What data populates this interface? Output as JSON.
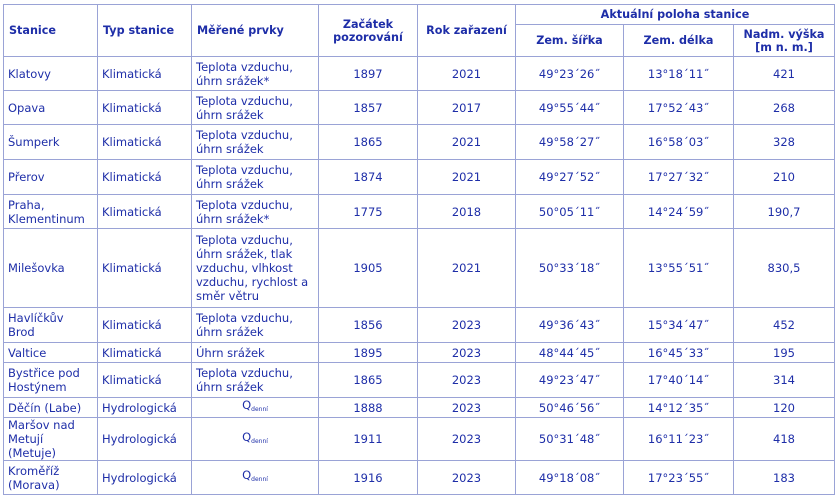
{
  "headers": {
    "station": "Stanice",
    "type": "Typ stanice",
    "measured": "Měřené prvky",
    "start": "Začátek pozorování",
    "year": "Rok zařazení",
    "position_group": "Aktuální poloha stanice",
    "lat": "Zem. šířka",
    "lon": "Zem. délka",
    "alt": "Nadm. výška [m n. m.]"
  },
  "rows": [
    {
      "station": "Klatovy",
      "type": "Klimatická",
      "measured": "Teplota vzduchu, úhrn srážek*",
      "start": "1897",
      "year": "2021",
      "lat": "49°23´26˝",
      "lon": "13°18´11˝",
      "alt": "421"
    },
    {
      "station": "Opava",
      "type": "Klimatická",
      "measured": "Teplota vzduchu, úhrn srážek",
      "start": "1857",
      "year": "2017",
      "lat": "49°55´44˝",
      "lon": "17°52´43˝",
      "alt": "268"
    },
    {
      "station": "Šumperk",
      "type": "Klimatická",
      "measured": "Teplota vzduchu, úhrn srážek",
      "start": "1865",
      "year": "2021",
      "lat": "49°58´27˝",
      "lon": "16°58´03˝",
      "alt": "328"
    },
    {
      "station": "Přerov",
      "type": "Klimatická",
      "measured": "Teplota vzduchu, úhrn srážek",
      "start": "1874",
      "year": "2021",
      "lat": "49°27´52˝",
      "lon": "17°27´32˝",
      "alt": "210"
    },
    {
      "station": "Praha, Klementinum",
      "type": "Klimatická",
      "measured": "Teplota vzduchu, úhrn srážek*",
      "start": "1775",
      "year": "2018",
      "lat": "50°05´11˝",
      "lon": "14°24´59˝",
      "alt": "190,7"
    },
    {
      "station": "Milešovka",
      "type": "Klimatická",
      "measured": "Teplota vzduchu, úhrn srážek, tlak vzduchu, vlhkost vzduchu, rychlost a směr větru",
      "start": "1905",
      "year": "2021",
      "lat": "50°33´18˝",
      "lon": "13°55´51˝",
      "alt": "830,5"
    },
    {
      "station": "Havlíčkův Brod",
      "type": "Klimatická",
      "measured": "Teplota vzduchu, úhrn srážek",
      "start": "1856",
      "year": "2023",
      "lat": "49°36´43˝",
      "lon": "15°34´47˝",
      "alt": "452"
    },
    {
      "station": "Valtice",
      "type": "Klimatická",
      "measured": "Úhrn srážek",
      "start": "1895",
      "year": "2023",
      "lat": "48°44´45˝",
      "lon": "16°45´33˝",
      "alt": "195"
    },
    {
      "station": "Bystřice pod Hostýnem",
      "type": "Klimatická",
      "measured": "Teplota vzduchu, úhrn srážek",
      "start": "1865",
      "year": "2023",
      "lat": "49°23´47˝",
      "lon": "17°40´14˝",
      "alt": "314"
    },
    {
      "station": "Děčín (Labe)",
      "type": "Hydrologická",
      "measured": "Q",
      "measured_sub": "denní",
      "start": "1888",
      "year": "2023",
      "lat": "50°46´56˝",
      "lon": "14°12´35˝",
      "alt": "120"
    },
    {
      "station": "Maršov nad Metují (Metuje)",
      "type": "Hydrologická",
      "measured": "Q",
      "measured_sub": "denní",
      "start": "1911",
      "year": "2023",
      "lat": "50°31´48˝",
      "lon": "16°11´23˝",
      "alt": "418"
    },
    {
      "station": "Kroměříž (Morava)",
      "type": "Hydrologická",
      "measured": "Q",
      "measured_sub": "denní",
      "start": "1916",
      "year": "2023",
      "lat": "49°18´08˝",
      "lon": "17°23´55˝",
      "alt": "183"
    }
  ]
}
